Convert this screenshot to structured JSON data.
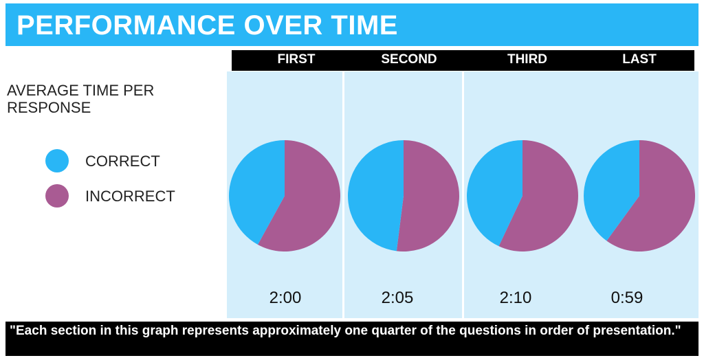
{
  "title": "PERFORMANCE OVER TIME",
  "left_label": "AVERAGE TIME PER RESPONSE",
  "legend": [
    {
      "label": "CORRECT",
      "color": "#29b6f6"
    },
    {
      "label": "INCORRECT",
      "color": "#a95b93"
    }
  ],
  "footnote": "\"Each section in this graph represents approximately one quarter of the questions in order of presentation.\"",
  "chart_data": {
    "type": "pie",
    "categories": [
      "FIRST",
      "SECOND",
      "THIRD",
      "LAST"
    ],
    "series": [
      {
        "name": "CORRECT",
        "values": [
          42,
          48,
          43,
          40
        ]
      },
      {
        "name": "INCORRECT",
        "values": [
          58,
          52,
          57,
          60
        ]
      }
    ],
    "times": [
      "2:00",
      "2:05",
      "2:10",
      "0:59"
    ]
  }
}
